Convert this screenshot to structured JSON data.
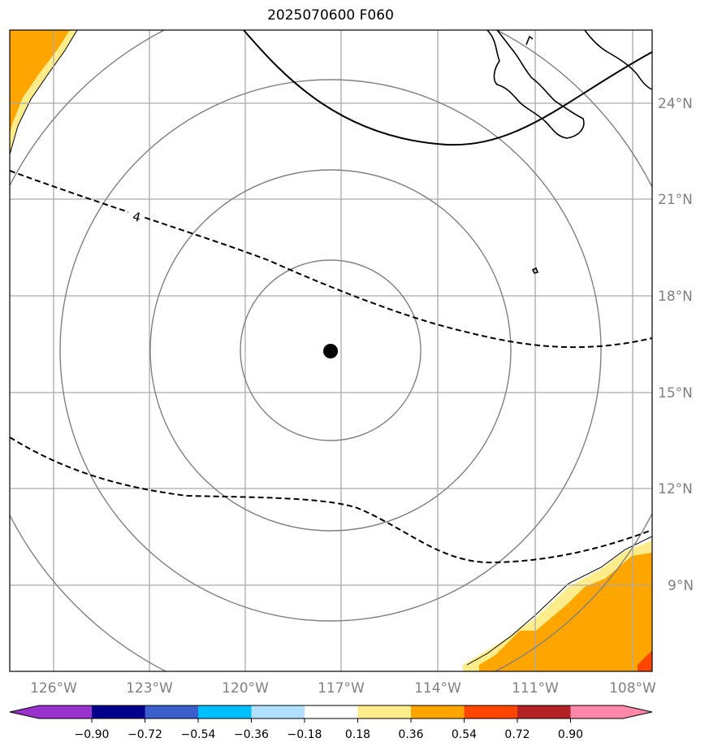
{
  "title": "2025070600 F060",
  "map": {
    "lon_ticks": [
      "126°W",
      "123°W",
      "120°W",
      "117°W",
      "114°W",
      "111°W",
      "108°W"
    ],
    "lat_ticks": [
      "24°N",
      "21°N",
      "18°N",
      "15°N",
      "12°N",
      "9°N"
    ],
    "contour_label": "4",
    "storm_center": {
      "lon": -117.4,
      "lat": 16.3
    },
    "range_rings": 4,
    "fill_colors": {
      "orange": "#ffa500",
      "light_yellow": "#ffec8b",
      "red_orange": "#ff4500"
    }
  },
  "colorbar": {
    "tick_labels": [
      "−0.90",
      "−0.72",
      "−0.54",
      "−0.36",
      "−0.18",
      "0.18",
      "0.36",
      "0.54",
      "0.72",
      "0.90"
    ],
    "colors": [
      "#9932cc",
      "#00008b",
      "#3a5fcd",
      "#00bfff",
      "#b0e2ff",
      "#ffffff",
      "#ffec8b",
      "#ffa500",
      "#ff4500",
      "#b22222",
      "#ff88aa"
    ]
  }
}
